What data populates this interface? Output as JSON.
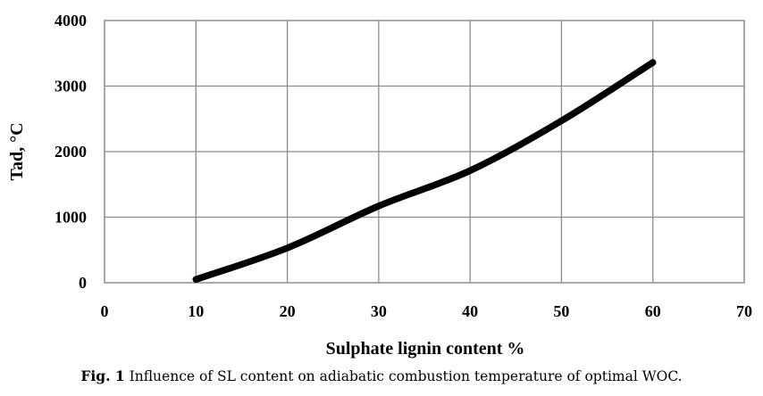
{
  "chart_data": {
    "type": "line",
    "xlabel": "Sulphate lignin content %",
    "ylabel": "Tad, °C",
    "xlim": [
      0,
      70
    ],
    "ylim": [
      0,
      4000
    ],
    "x_ticks": [
      0,
      10,
      20,
      30,
      40,
      50,
      60,
      70
    ],
    "y_ticks": [
      0,
      1000,
      2000,
      3000,
      4000
    ],
    "grid": true,
    "legend": "none",
    "series": [
      {
        "x": [
          10,
          20,
          30,
          40,
          50,
          60
        ],
        "y": [
          50,
          530,
          1170,
          1710,
          2470,
          3360
        ],
        "color": "#000000"
      }
    ]
  },
  "caption": {
    "label": "Fig. 1",
    "text": " Influence of SL content on adiabatic combustion temperature of optimal WOC."
  }
}
